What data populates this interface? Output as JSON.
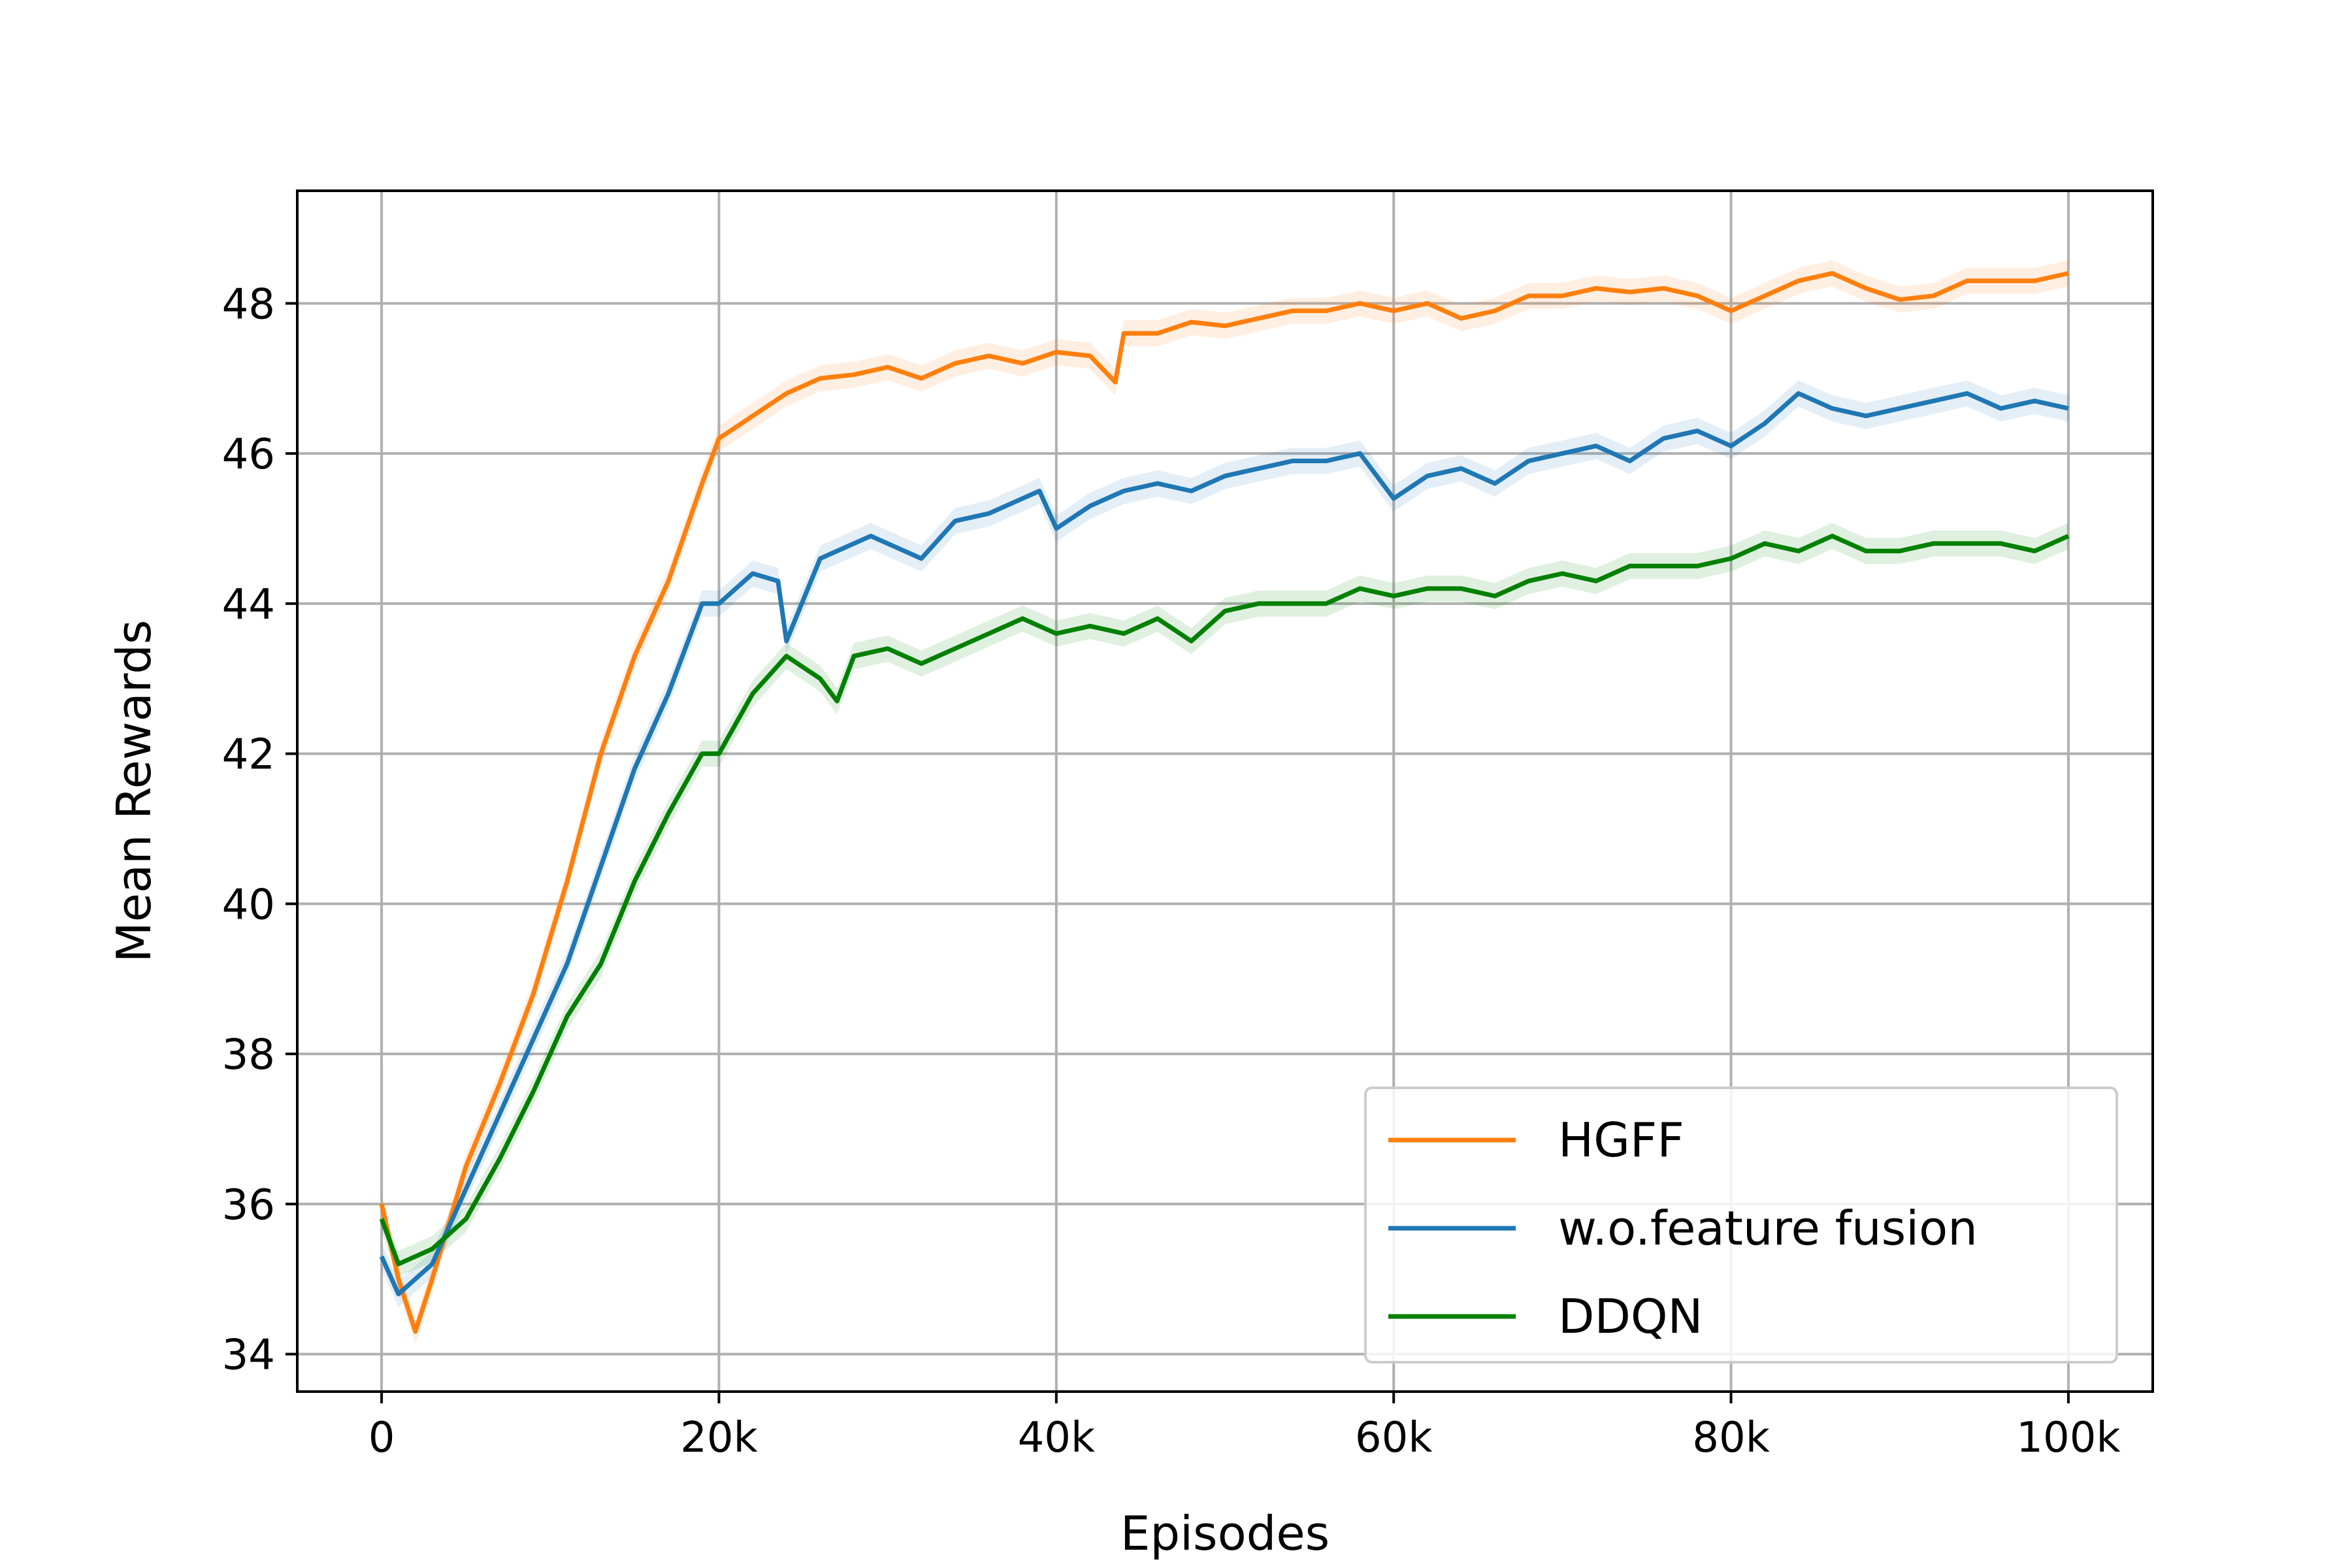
{
  "chart_data": {
    "type": "line",
    "title": "",
    "xlabel": "Episodes",
    "ylabel": "Mean Rewards",
    "xlim": [
      -5000,
      105000
    ],
    "ylim": [
      33.5,
      49.5
    ],
    "xticks": [
      0,
      20000,
      40000,
      60000,
      80000,
      100000
    ],
    "xtick_labels": [
      "0",
      "20k",
      "40k",
      "60k",
      "80k",
      "100k"
    ],
    "yticks": [
      34,
      36,
      38,
      40,
      42,
      44,
      46,
      48
    ],
    "ytick_labels": [
      "34",
      "36",
      "38",
      "40",
      "42",
      "44",
      "46",
      "48"
    ],
    "grid": true,
    "legend_position": "lower-right",
    "series": [
      {
        "name": "HGFF",
        "color": "#ff7f0e",
        "x": [
          0,
          1000,
          2000,
          3000,
          5000,
          7000,
          9000,
          11000,
          13000,
          15000,
          17000,
          19000,
          20000,
          22000,
          24000,
          26000,
          28000,
          30000,
          32000,
          34000,
          36000,
          38000,
          40000,
          42000,
          43500,
          44000,
          46000,
          48000,
          50000,
          52000,
          54000,
          56000,
          58000,
          60000,
          62000,
          64000,
          66000,
          68000,
          70000,
          72000,
          74000,
          76000,
          78000,
          80000,
          82000,
          84000,
          86000,
          88000,
          90000,
          92000,
          94000,
          96000,
          98000,
          100000
        ],
        "y": [
          36.0,
          35.0,
          34.3,
          35.0,
          36.5,
          37.6,
          38.8,
          40.3,
          42.0,
          43.3,
          44.3,
          45.6,
          46.2,
          46.5,
          46.8,
          47.0,
          47.05,
          47.15,
          47.0,
          47.2,
          47.3,
          47.2,
          47.35,
          47.3,
          46.95,
          47.6,
          47.6,
          47.75,
          47.7,
          47.8,
          47.9,
          47.9,
          48.0,
          47.9,
          48.0,
          47.8,
          47.9,
          48.1,
          48.1,
          48.2,
          48.15,
          48.2,
          48.1,
          47.9,
          48.1,
          48.3,
          48.4,
          48.2,
          48.05,
          48.1,
          48.3,
          48.3,
          48.3,
          48.4
        ]
      },
      {
        "name": "w.o.feature fusion",
        "color": "#1f77b4",
        "x": [
          0,
          1000,
          2000,
          3000,
          5000,
          7000,
          9000,
          11000,
          13000,
          15000,
          17000,
          19000,
          20000,
          22000,
          23500,
          24000,
          26000,
          28000,
          29000,
          30000,
          32000,
          34000,
          36000,
          38000,
          39000,
          40000,
          42000,
          44000,
          46000,
          48000,
          50000,
          52000,
          54000,
          56000,
          58000,
          60000,
          62000,
          64000,
          66000,
          68000,
          70000,
          72000,
          74000,
          76000,
          78000,
          80000,
          82000,
          84000,
          86000,
          88000,
          90000,
          92000,
          94000,
          96000,
          98000,
          100000
        ],
        "y": [
          35.3,
          34.8,
          35.0,
          35.2,
          36.2,
          37.2,
          38.2,
          39.2,
          40.5,
          41.8,
          42.8,
          44.0,
          44.0,
          44.4,
          44.3,
          43.5,
          44.6,
          44.8,
          44.9,
          44.8,
          44.6,
          45.1,
          45.2,
          45.4,
          45.5,
          45.0,
          45.3,
          45.5,
          45.6,
          45.5,
          45.7,
          45.8,
          45.9,
          45.9,
          46.0,
          45.4,
          45.7,
          45.8,
          45.6,
          45.9,
          46.0,
          46.1,
          45.9,
          46.2,
          46.3,
          46.1,
          46.4,
          46.8,
          46.6,
          46.5,
          46.6,
          46.7,
          46.8,
          46.6,
          46.7,
          46.6
        ]
      },
      {
        "name": "DDQN",
        "color": "#008000",
        "x": [
          0,
          1000,
          2000,
          3000,
          5000,
          7000,
          9000,
          11000,
          13000,
          15000,
          17000,
          19000,
          20000,
          22000,
          24000,
          26000,
          27000,
          28000,
          30000,
          32000,
          34000,
          36000,
          38000,
          40000,
          42000,
          44000,
          46000,
          48000,
          50000,
          52000,
          54000,
          56000,
          58000,
          60000,
          62000,
          64000,
          66000,
          68000,
          70000,
          72000,
          74000,
          76000,
          78000,
          80000,
          82000,
          84000,
          86000,
          88000,
          90000,
          92000,
          94000,
          96000,
          98000,
          100000
        ],
        "y": [
          35.8,
          35.2,
          35.3,
          35.4,
          35.8,
          36.6,
          37.5,
          38.5,
          39.2,
          40.3,
          41.2,
          42.0,
          42.0,
          42.8,
          43.3,
          43.0,
          42.7,
          43.3,
          43.4,
          43.2,
          43.4,
          43.6,
          43.8,
          43.6,
          43.7,
          43.6,
          43.8,
          43.5,
          43.9,
          44.0,
          44.0,
          44.0,
          44.2,
          44.1,
          44.2,
          44.2,
          44.1,
          44.3,
          44.4,
          44.3,
          44.5,
          44.5,
          44.5,
          44.6,
          44.8,
          44.7,
          44.9,
          44.7,
          44.7,
          44.8,
          44.8,
          44.8,
          44.7,
          44.9
        ]
      }
    ]
  }
}
